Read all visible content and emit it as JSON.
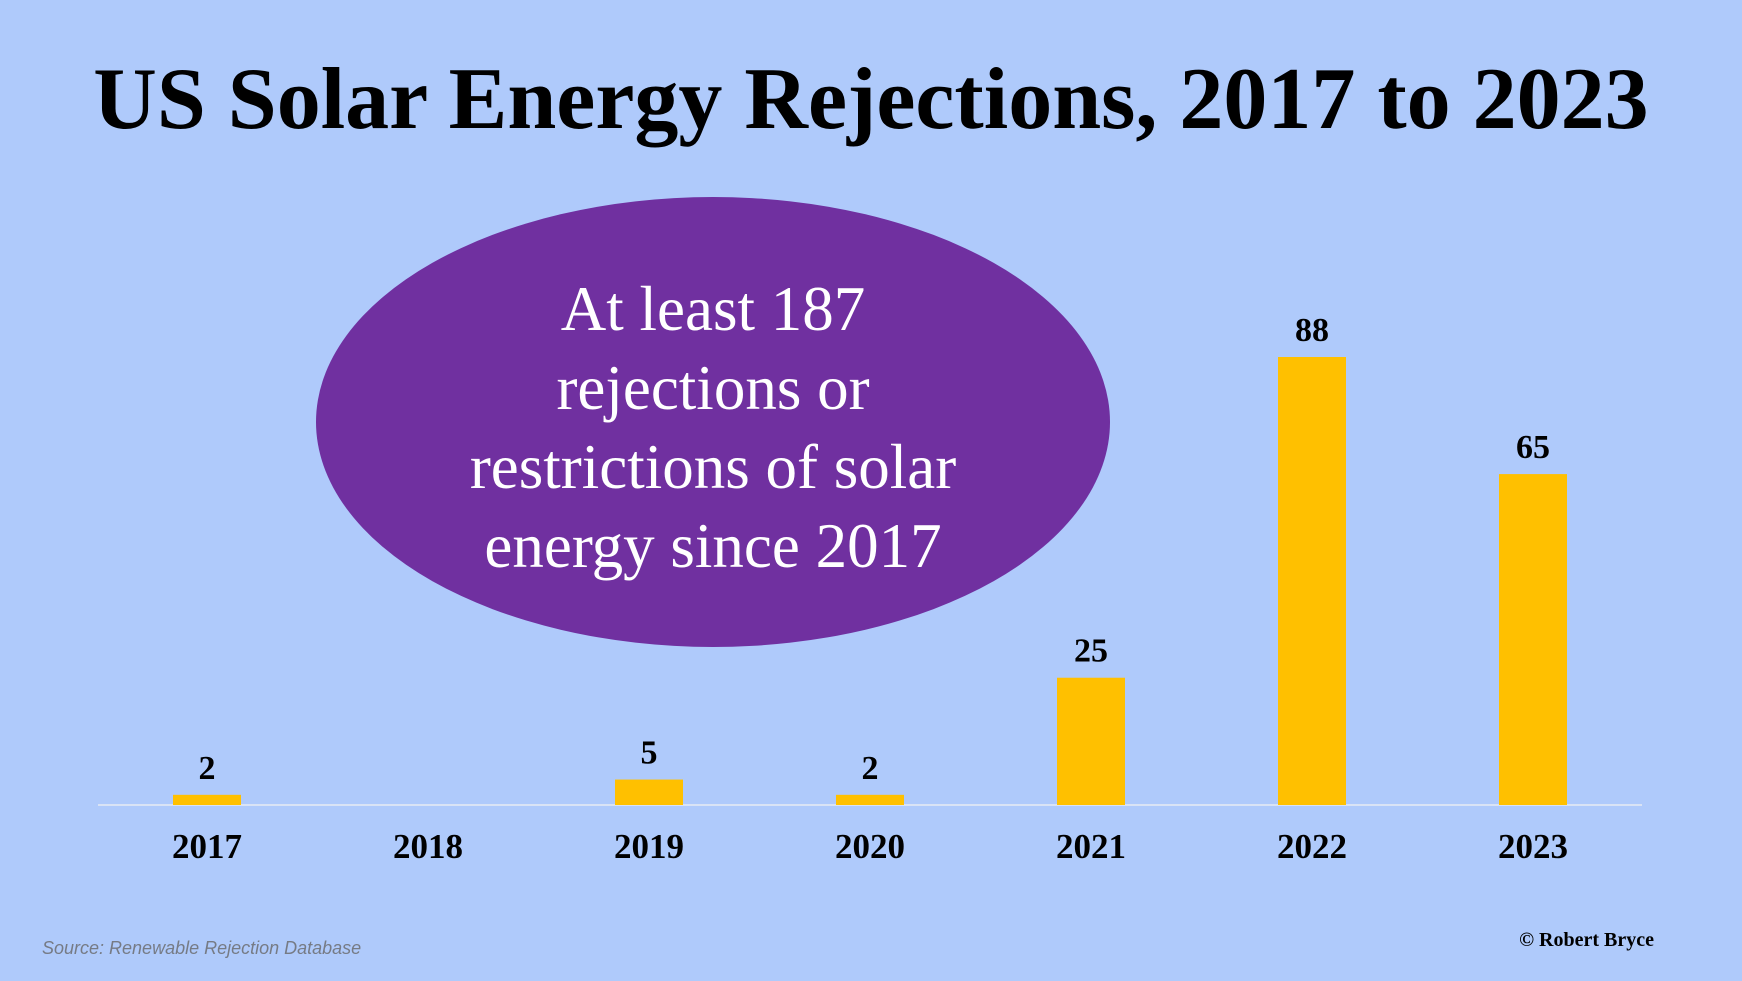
{
  "chart_data": {
    "type": "bar",
    "title": "US Solar Energy Rejections, 2017 to 2023",
    "categories": [
      "2017",
      "2018",
      "2019",
      "2020",
      "2021",
      "2022",
      "2023"
    ],
    "values": [
      2,
      0,
      5,
      2,
      25,
      88,
      65
    ],
    "data_labels": [
      "2",
      "",
      "5",
      "2",
      "25",
      "88",
      "65"
    ],
    "xlabel": "",
    "ylabel": "",
    "ylim": [
      0,
      100
    ],
    "grid": false,
    "legend": "none",
    "bar_color": "#ffc000",
    "annotation": {
      "shape": "ellipse",
      "fill_color": "#7030a0",
      "lines": [
        "At least 187",
        "rejections or",
        "restrictions of solar",
        "energy since 2017"
      ]
    },
    "source": "Source: Renewable Rejection Database",
    "credit": "© Robert Bryce"
  },
  "colors": {
    "background": "#afcafb",
    "bar": "#ffc000",
    "ellipse": "#7030a0",
    "baseline": "#d9e3f5"
  }
}
